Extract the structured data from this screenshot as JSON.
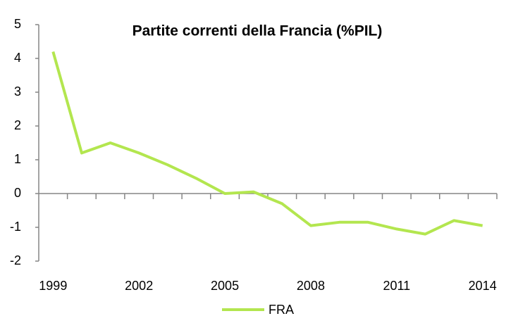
{
  "chart_data": {
    "type": "line",
    "title": "Partite correnti della Francia (%PIL)",
    "categories": [
      "1999",
      null,
      null,
      "2002",
      null,
      null,
      "2005",
      null,
      null,
      "2008",
      null,
      null,
      "2011",
      null,
      null,
      "2014"
    ],
    "series": [
      {
        "name": "FRA",
        "color": "#b3e64f",
        "values": [
          4.2,
          1.2,
          1.5,
          1.2,
          0.85,
          0.45,
          0.0,
          0.05,
          -0.3,
          -0.95,
          -0.85,
          -0.85,
          -1.05,
          -1.2,
          -0.8,
          -0.95
        ]
      }
    ],
    "ylim": [
      -2,
      5
    ],
    "yticks": [
      -2,
      -1,
      0,
      1,
      2,
      3,
      4,
      5
    ],
    "legend": "bottom"
  }
}
